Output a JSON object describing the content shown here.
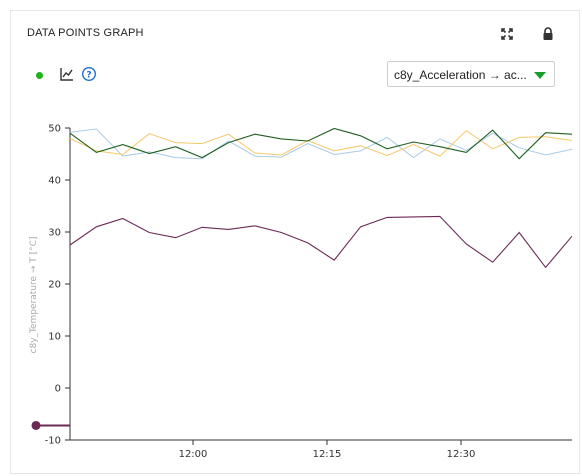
{
  "widget": {
    "title": "DATA POINTS GRAPH",
    "icons": {
      "expand": "expand-icon",
      "lock": "lock-icon",
      "status": "status-dot",
      "chart": "line-chart-icon",
      "help": "help-icon"
    },
    "status_color": "#1db31d"
  },
  "selector": {
    "value": "c8y_Acceleration → ac..."
  },
  "chart_data": {
    "type": "line",
    "ylabel": "c8y_Temperature → T [°C]",
    "ylim": [
      -10,
      50
    ],
    "yticks": [
      50,
      40,
      30,
      20,
      10,
      0,
      -10
    ],
    "xticks": [
      "12:00",
      "12:15",
      "12:30"
    ],
    "grid": false,
    "series": [
      {
        "color": "#a9cbe6",
        "values": [
          49.2,
          49.8,
          44.6,
          45.4,
          44.3,
          44.1,
          47.5,
          44.6,
          44.4,
          47.0,
          44.9,
          45.6,
          48.2,
          44.3,
          47.9,
          45.7,
          49.0,
          46.2,
          44.8,
          45.9
        ]
      },
      {
        "color": "#f6c86a",
        "values": [
          48.0,
          45.6,
          44.9,
          48.9,
          47.2,
          47.0,
          48.8,
          45.2,
          44.8,
          47.6,
          45.6,
          46.6,
          44.7,
          46.8,
          44.6,
          49.5,
          46.0,
          48.2,
          48.3,
          47.6
        ]
      },
      {
        "color": "#1f5e1f",
        "values": [
          49.0,
          45.3,
          46.8,
          45.1,
          46.4,
          44.3,
          47.2,
          48.8,
          47.9,
          47.5,
          49.9,
          48.5,
          46.0,
          47.3,
          46.4,
          45.3,
          49.6,
          44.1,
          49.1,
          48.8
        ]
      },
      {
        "color": "#6b2a55",
        "values": [
          27.5,
          31.0,
          32.6,
          29.9,
          28.9,
          30.9,
          30.5,
          31.2,
          29.9,
          27.9,
          24.6,
          31.0,
          32.8,
          32.9,
          33.0,
          27.7,
          24.2,
          29.9,
          23.2,
          29.2
        ]
      }
    ],
    "marker": {
      "value": -7.2,
      "color": "#6b2a55"
    }
  }
}
